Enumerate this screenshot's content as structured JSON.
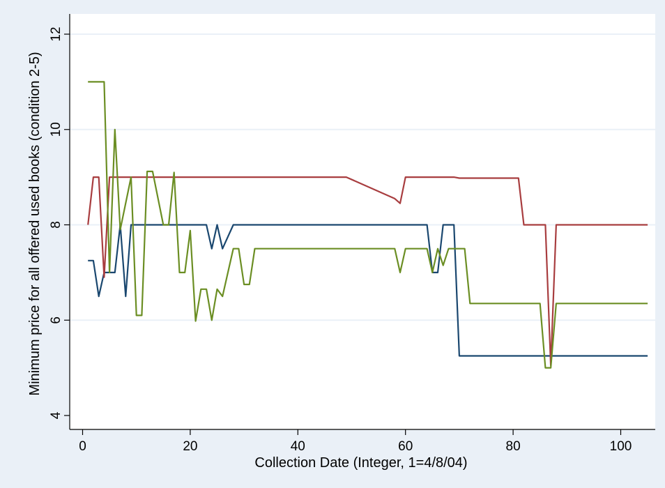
{
  "chart_data": {
    "type": "line",
    "xlabel": "Collection Date (Integer, 1=4/8/04)",
    "ylabel": "Minimum price for all offered used books (condition 2-5)",
    "xlim": [
      0,
      105
    ],
    "ylim": [
      4,
      12
    ],
    "x_ticks": [
      0,
      20,
      40,
      60,
      80,
      100
    ],
    "y_ticks": [
      4,
      6,
      8,
      10,
      12
    ],
    "x_tick_labels": [
      "0",
      "20",
      "40",
      "60",
      "80",
      "100"
    ],
    "y_tick_labels": [
      "4",
      "6",
      "8",
      "10",
      "12"
    ],
    "grid": "horizontal",
    "legend": "none",
    "colors": {
      "outer_background": "#eaf0f7",
      "plot_background": "#ffffff",
      "grid": "#eaf0f7",
      "axis": "#000000"
    },
    "series": [
      {
        "color": "#1a476f",
        "points": [
          [
            1,
            7.25
          ],
          [
            2,
            7.25
          ],
          [
            3,
            6.5
          ],
          [
            4,
            7
          ],
          [
            5,
            7
          ],
          [
            6,
            7
          ],
          [
            7,
            8
          ],
          [
            8,
            6.5
          ],
          [
            9,
            8
          ],
          [
            10,
            8
          ],
          [
            20,
            8
          ],
          [
            23,
            8
          ],
          [
            24,
            7.5
          ],
          [
            25,
            8
          ],
          [
            26,
            7.5
          ],
          [
            28,
            8
          ],
          [
            64,
            8
          ],
          [
            65,
            7
          ],
          [
            66,
            7
          ],
          [
            67,
            8
          ],
          [
            69,
            8
          ],
          [
            70,
            5.25
          ],
          [
            105,
            5.25
          ]
        ]
      },
      {
        "color": "#a83d3f",
        "points": [
          [
            1,
            8
          ],
          [
            2,
            9
          ],
          [
            3,
            9
          ],
          [
            4,
            6.9
          ],
          [
            5,
            9
          ],
          [
            49,
            9
          ],
          [
            58,
            8.55
          ],
          [
            59,
            8.45
          ],
          [
            60,
            9
          ],
          [
            69,
            9
          ],
          [
            70,
            8.98
          ],
          [
            81,
            8.98
          ],
          [
            82,
            8
          ],
          [
            85,
            8
          ],
          [
            86,
            8
          ],
          [
            87,
            5.05
          ],
          [
            88,
            8
          ],
          [
            105,
            8
          ]
        ]
      },
      {
        "color": "#6b8e23",
        "points": [
          [
            1,
            11
          ],
          [
            3,
            11
          ],
          [
            4,
            11
          ],
          [
            5,
            7
          ],
          [
            6,
            10
          ],
          [
            7,
            7.9
          ],
          [
            9,
            9
          ],
          [
            10,
            6.1
          ],
          [
            11,
            6.1
          ],
          [
            12,
            9.12
          ],
          [
            13,
            9.12
          ],
          [
            15,
            8
          ],
          [
            16,
            8
          ],
          [
            17,
            9.1
          ],
          [
            18,
            7
          ],
          [
            19,
            7
          ],
          [
            20,
            7.88
          ],
          [
            21,
            5.98
          ],
          [
            22,
            6.65
          ],
          [
            23,
            6.65
          ],
          [
            24,
            6
          ],
          [
            25,
            6.65
          ],
          [
            26,
            6.5
          ],
          [
            28,
            7.5
          ],
          [
            29,
            7.5
          ],
          [
            30,
            6.75
          ],
          [
            31,
            6.75
          ],
          [
            32,
            7.5
          ],
          [
            58,
            7.5
          ],
          [
            59,
            7
          ],
          [
            60,
            7.5
          ],
          [
            64,
            7.5
          ],
          [
            65,
            7
          ],
          [
            66,
            7.5
          ],
          [
            67,
            7.15
          ],
          [
            68,
            7.5
          ],
          [
            71,
            7.5
          ],
          [
            72,
            6.35
          ],
          [
            85,
            6.35
          ],
          [
            86,
            5
          ],
          [
            87,
            5
          ],
          [
            88,
            6.35
          ],
          [
            105,
            6.35
          ]
        ]
      }
    ]
  }
}
